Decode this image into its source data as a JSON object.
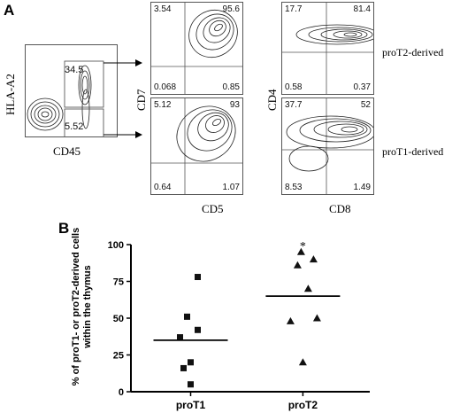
{
  "panel_a": {
    "letter": "A",
    "gating": {
      "y_label": "HLA-A2",
      "x_label": "CD45",
      "upper_gate_value": "34.5",
      "lower_gate_value": "5.52"
    },
    "side_labels": {
      "top": "proT2-derived",
      "bottom": "proT1-derived"
    },
    "quadrant_axes": {
      "cd7": "CD7",
      "cd5": "CD5",
      "cd4": "CD4",
      "cd8": "CD8"
    },
    "quadrant_plots": [
      {
        "ul": "3.54",
        "ur": "95.6",
        "ll": "0.068",
        "lr": "0.85"
      },
      {
        "ul": "17.7",
        "ur": "81.4",
        "ll": "0.58",
        "lr": "0.37"
      },
      {
        "ul": "5.12",
        "ur": "93",
        "ll": "0.64",
        "lr": "1.07"
      },
      {
        "ul": "37.7",
        "ur": "52",
        "ll": "8.53",
        "lr": "1.49"
      }
    ]
  },
  "panel_b": {
    "letter": "B"
  },
  "chart_data": {
    "type": "scatter",
    "categories": [
      "proT1",
      "proT2"
    ],
    "ylabel": "% of proT1- or proT2-derived cells within the thymus",
    "ylim": [
      0,
      100
    ],
    "yticks": [
      "0",
      "25",
      "50",
      "75",
      "100"
    ],
    "series": [
      {
        "name": "proT1",
        "marker": "square",
        "values": [
          78,
          51,
          42,
          37,
          20,
          16,
          5
        ],
        "mean": 35
      },
      {
        "name": "proT2",
        "marker": "triangle",
        "values": [
          95,
          90,
          86,
          70,
          50,
          48,
          20
        ],
        "mean": 65
      }
    ],
    "annotation": "*",
    "colors": {
      "points": "#111111",
      "axis": "#000000"
    }
  }
}
